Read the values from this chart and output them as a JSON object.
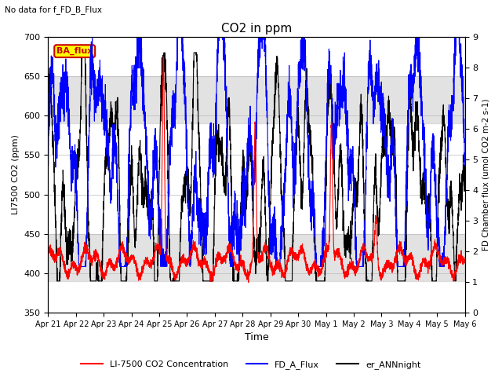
{
  "title": "CO2 in ppm",
  "subtitle": "No data for f_FD_B_Flux",
  "xlabel": "Time",
  "ylabel_left": "LI7500 CO2 (ppm)",
  "ylabel_right": "FD Chamber flux (umol CO2 m-2 s-1)",
  "ylim_left": [
    350,
    700
  ],
  "ylim_right": [
    0.0,
    9.0
  ],
  "yticks_left": [
    350,
    400,
    450,
    500,
    550,
    600,
    650,
    700
  ],
  "yticks_right": [
    0.0,
    1.0,
    2.0,
    3.0,
    4.0,
    5.0,
    6.0,
    7.0,
    8.0,
    9.0
  ],
  "xticklabels": [
    "Apr 21",
    "Apr 22",
    "Apr 23",
    "Apr 24",
    "Apr 25",
    "Apr 26",
    "Apr 27",
    "Apr 28",
    "Apr 29",
    "Apr 30",
    "May 1",
    "May 2",
    "May 3",
    "May 4",
    "May 5",
    "May 6"
  ],
  "legend_labels": [
    "LI-7500 CO2 Concentration",
    "FD_A_Flux",
    "er_ANNnight"
  ],
  "legend_colors": [
    "#ff0000",
    "#0000ff",
    "#000000"
  ],
  "ba_flux_color": "#cc0000",
  "ba_flux_bg": "#ffff00",
  "shaded_band_upper": [
    590,
    650
  ],
  "shaded_band_lower": [
    390,
    450
  ],
  "shaded_band_color": "#d0d0d0",
  "shaded_band_alpha": 0.6,
  "line_red_color": "#ff0000",
  "line_blue_color": "#0000ff",
  "line_black_color": "#000000",
  "n_points": 4000,
  "n_days": 15
}
